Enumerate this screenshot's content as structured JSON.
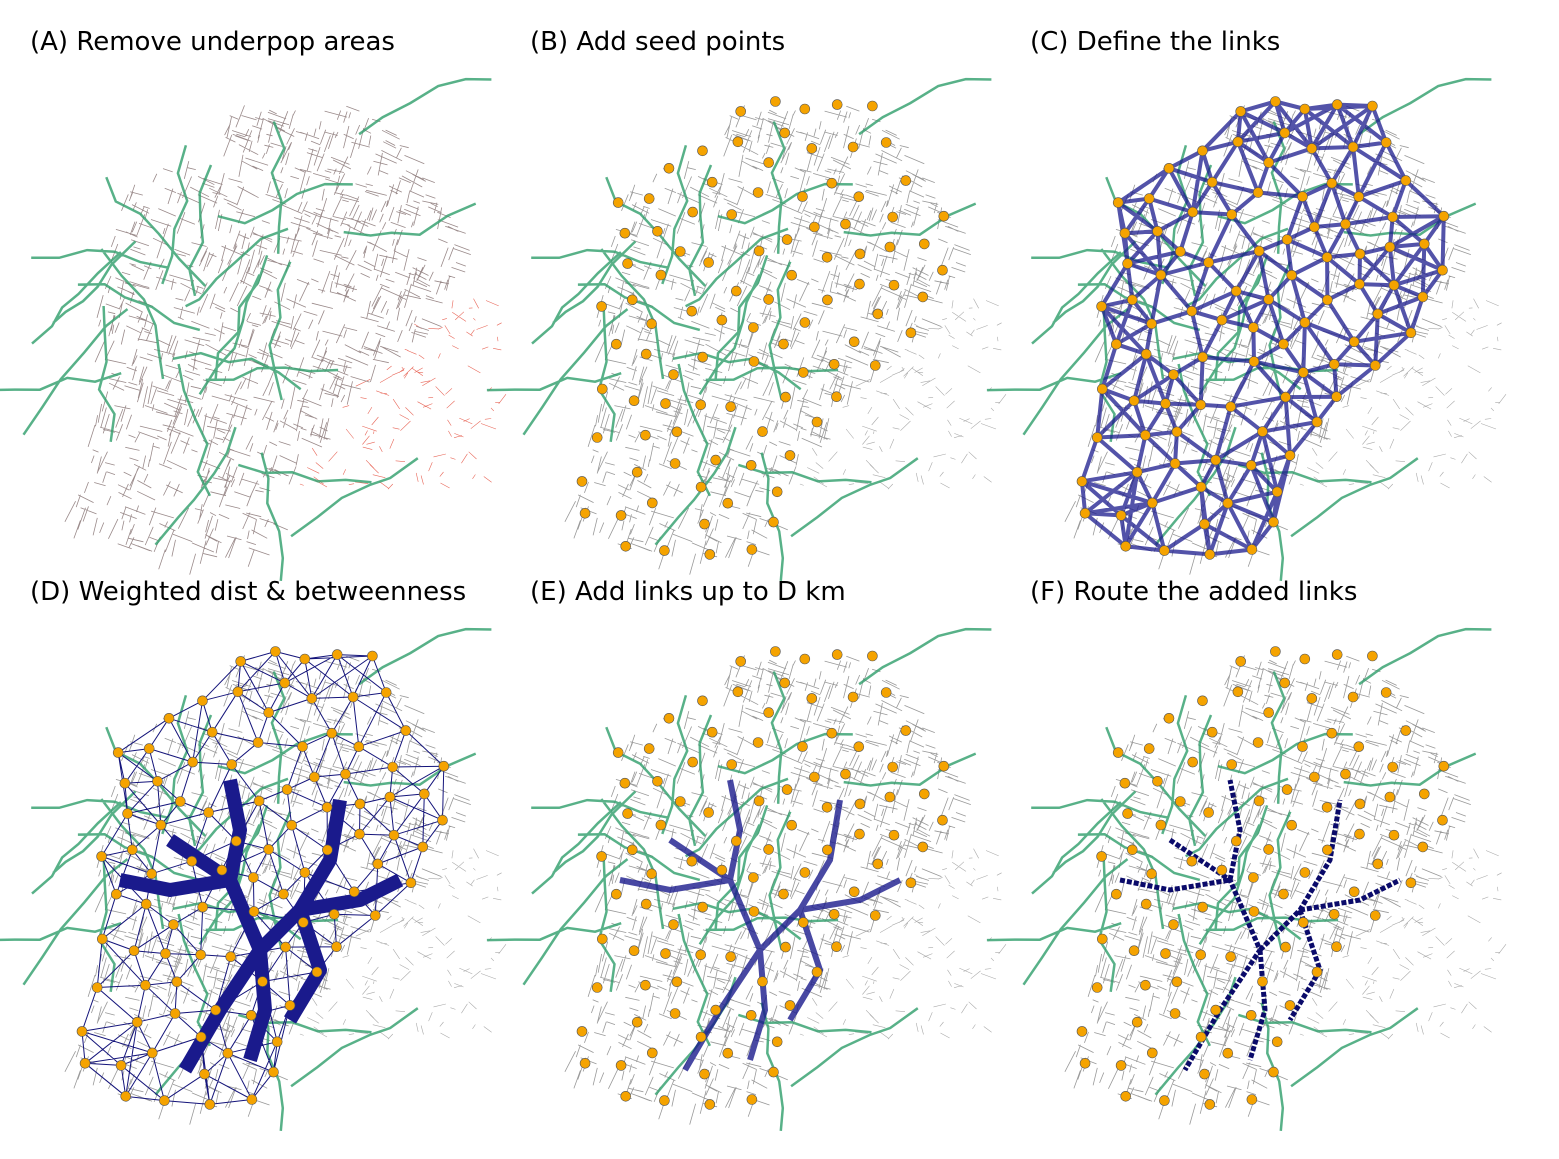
{
  "panels": [
    {
      "title": "(A) Remove underpop areas"
    },
    {
      "title": "(B) Add seed points"
    },
    {
      "title": "(C) Define the links"
    },
    {
      "title": "(D) Weighted dist & betweenness"
    },
    {
      "title": "(E) Add links up to D km"
    },
    {
      "title": "(F) Route the added links"
    }
  ]
}
